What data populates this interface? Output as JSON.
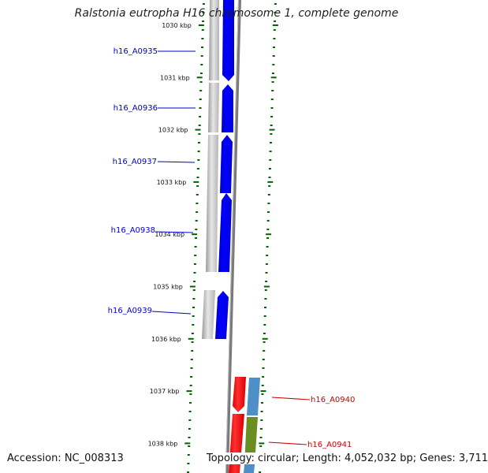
{
  "title": "Ralstonia eutropha H16 chromosome 1, complete genome",
  "footer": {
    "accession": "Accession: NC_008313",
    "topology": "Topology: circular; Length: 4,052,032 bp; Genes: 3,711"
  },
  "colors": {
    "forward_cds": "#0000ff",
    "reverse_cds": "#ff0000",
    "forward_label": "#0000cc",
    "reverse_label": "#cc0000",
    "backbone": "#808080",
    "tick": "#006400",
    "gc_blue": "#4f8fc8",
    "gc_olive": "#6b8e23"
  },
  "ticks": [
    "1030 kbp",
    "1031 kbp",
    "1032 kbp",
    "1033 kbp",
    "1034 kbp",
    "1035 kbp",
    "1036 kbp",
    "1037 kbp",
    "1038 kbp"
  ],
  "genes": [
    {
      "name": "h16_A0935",
      "strand": "forward"
    },
    {
      "name": "h16_A0936",
      "strand": "forward"
    },
    {
      "name": "h16_A0937",
      "strand": "forward"
    },
    {
      "name": "h16_A0938",
      "strand": "forward"
    },
    {
      "name": "h16_A0939",
      "strand": "forward"
    },
    {
      "name": "h16_A0940",
      "strand": "reverse"
    },
    {
      "name": "h16_A0941",
      "strand": "reverse"
    }
  ]
}
